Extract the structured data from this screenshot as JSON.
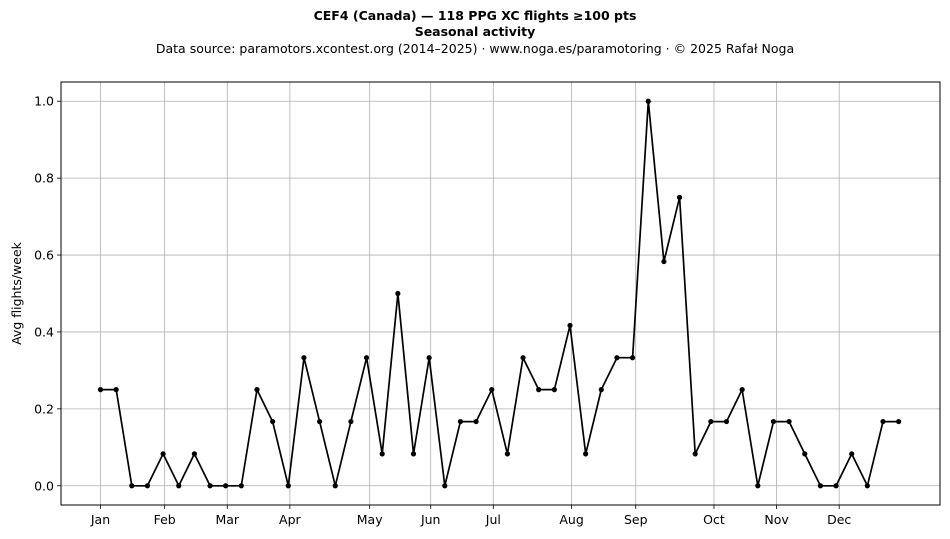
{
  "chart_data": {
    "type": "line",
    "title": "CEF4 (Canada)  —  118 PPG XC flights ≥100 pts",
    "subtitle": "Seasonal activity",
    "source": "Data source: paramotors.xcontest.org (2014–2025)  ·  www.noga.es/paramotoring  ·  © 2025 Rafał Noga",
    "xlabel": "",
    "ylabel": "Avg flights/week",
    "xlim": [
      0,
      53
    ],
    "ylim": [
      -0.05,
      1.05
    ],
    "grid": true,
    "x_ticks": [
      {
        "label": "Jan",
        "week": 1
      },
      {
        "label": "Feb",
        "week": 5.1
      },
      {
        "label": "Mar",
        "week": 9.1
      },
      {
        "label": "Apr",
        "week": 13.1
      },
      {
        "label": "May",
        "week": 18.2
      },
      {
        "label": "Jun",
        "week": 22.1
      },
      {
        "label": "Jul",
        "week": 26.1
      },
      {
        "label": "Aug",
        "week": 31.1
      },
      {
        "label": "Sep",
        "week": 35.2
      },
      {
        "label": "Oct",
        "week": 40.2
      },
      {
        "label": "Nov",
        "week": 44.2
      },
      {
        "label": "Dec",
        "week": 48.2
      }
    ],
    "y_ticks": [
      0.0,
      0.2,
      0.4,
      0.6,
      0.8,
      1.0
    ],
    "series": [
      {
        "color": "#000000",
        "x": [
          1,
          2,
          3,
          4,
          5,
          6,
          7,
          8,
          9,
          10,
          11,
          12,
          13,
          14,
          15,
          16,
          17,
          18,
          19,
          20,
          21,
          22,
          23,
          24,
          25,
          26,
          27,
          28,
          29,
          30,
          31,
          32,
          33,
          34,
          35,
          36,
          37,
          38,
          39,
          40,
          41,
          42,
          43,
          44,
          45,
          46,
          47,
          48,
          49,
          50,
          51,
          52
        ],
        "y": [
          0.25,
          0.25,
          0,
          0,
          0.083,
          0,
          0.083,
          0,
          0,
          0,
          0.25,
          0.167,
          0,
          0.333,
          0.167,
          0,
          0.167,
          0.333,
          0.083,
          0.5,
          0.083,
          0.333,
          0,
          0.167,
          0.167,
          0.25,
          0.083,
          0.333,
          0.25,
          0.25,
          0.417,
          0.083,
          0.25,
          0.333,
          0.333,
          1.0,
          0.583,
          0.75,
          0.083,
          0.167,
          0.167,
          0.25,
          0,
          0.167,
          0.167,
          0.083,
          0,
          0,
          0.083,
          0,
          0.167,
          0.167
        ]
      }
    ]
  }
}
